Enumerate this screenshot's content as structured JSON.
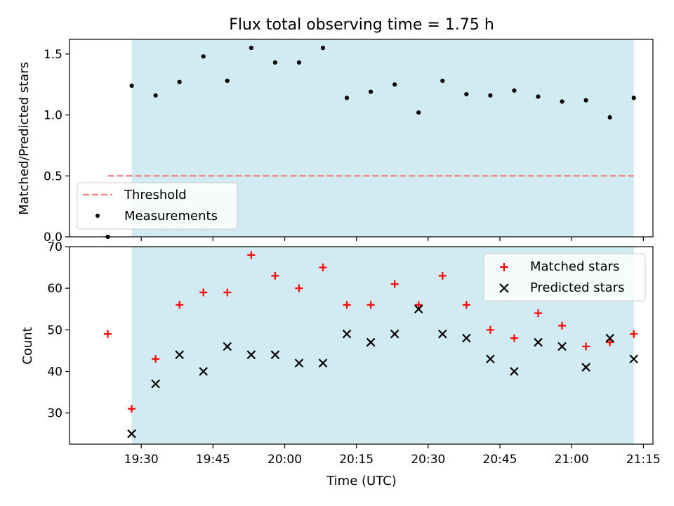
{
  "chart_data": [
    {
      "type": "scatter",
      "title": "Flux total observing time = 1.75 h",
      "xlabel": "",
      "ylabel": "Matched/Predicted stars",
      "ylim": [
        0,
        1.62
      ],
      "yticks": [
        "0.0",
        "0.5",
        "1.0",
        "1.5"
      ],
      "xlim": [
        "19:15",
        "21:17"
      ],
      "shaded_range": [
        "19:28",
        "21:13"
      ],
      "shade_color": "#add8e6",
      "threshold": {
        "name": "Threshold",
        "value": 0.5,
        "x_range": [
          "19:23",
          "21:13"
        ],
        "color": "#f08080",
        "style": "dashed"
      },
      "series": [
        {
          "name": "Measurements",
          "color": "#000000",
          "marker": "dot",
          "x": [
            "19:23",
            "19:28",
            "19:33",
            "19:38",
            "19:43",
            "19:48",
            "19:53",
            "19:58",
            "20:03",
            "20:08",
            "20:13",
            "20:18",
            "20:23",
            "20:28",
            "20:33",
            "20:38",
            "20:43",
            "20:48",
            "20:53",
            "20:58",
            "21:03",
            "21:08",
            "21:13"
          ],
          "values": [
            0.0,
            1.24,
            1.16,
            1.27,
            1.48,
            1.28,
            1.55,
            1.43,
            1.43,
            1.55,
            1.14,
            1.19,
            1.25,
            1.02,
            1.28,
            1.17,
            1.16,
            1.2,
            1.15,
            1.11,
            1.12,
            0.98,
            1.14
          ]
        }
      ],
      "legend": {
        "placement": "lower-left",
        "entries": [
          "Threshold",
          "Measurements"
        ]
      }
    },
    {
      "type": "scatter",
      "xlabel": "Time (UTC)",
      "ylabel": "Count",
      "ylim": [
        22.5,
        70
      ],
      "yticks": [
        "30",
        "40",
        "50",
        "60",
        "70"
      ],
      "xlim": [
        "19:15",
        "21:17"
      ],
      "xticks": [
        "19:30",
        "19:45",
        "20:00",
        "20:15",
        "20:30",
        "20:45",
        "21:00",
        "21:15"
      ],
      "shaded_range": [
        "19:28",
        "21:13"
      ],
      "shade_color": "#add8e6",
      "series": [
        {
          "name": "Matched stars",
          "color": "#ff0000",
          "marker": "plus",
          "x": [
            "19:23",
            "19:28",
            "19:33",
            "19:38",
            "19:43",
            "19:48",
            "19:53",
            "19:58",
            "20:03",
            "20:08",
            "20:13",
            "20:18",
            "20:23",
            "20:28",
            "20:33",
            "20:38",
            "20:43",
            "20:48",
            "20:53",
            "20:58",
            "21:03",
            "21:08",
            "21:13"
          ],
          "values": [
            49,
            31,
            43,
            56,
            59,
            59,
            68,
            63,
            60,
            65,
            56,
            56,
            61,
            56,
            63,
            56,
            50,
            48,
            54,
            51,
            46,
            47,
            49
          ]
        },
        {
          "name": "Predicted stars",
          "color": "#000000",
          "marker": "x",
          "x": [
            "19:28",
            "19:33",
            "19:38",
            "19:43",
            "19:48",
            "19:53",
            "19:58",
            "20:03",
            "20:08",
            "20:13",
            "20:18",
            "20:23",
            "20:28",
            "20:33",
            "20:38",
            "20:43",
            "20:48",
            "20:53",
            "20:58",
            "21:03",
            "21:08",
            "21:13"
          ],
          "values": [
            25,
            37,
            44,
            40,
            46,
            44,
            44,
            42,
            42,
            49,
            47,
            49,
            55,
            49,
            48,
            43,
            40,
            47,
            46,
            41,
            48,
            43
          ]
        }
      ],
      "legend": {
        "placement": "top-right",
        "entries": [
          "Matched stars",
          "Predicted stars"
        ]
      }
    }
  ]
}
